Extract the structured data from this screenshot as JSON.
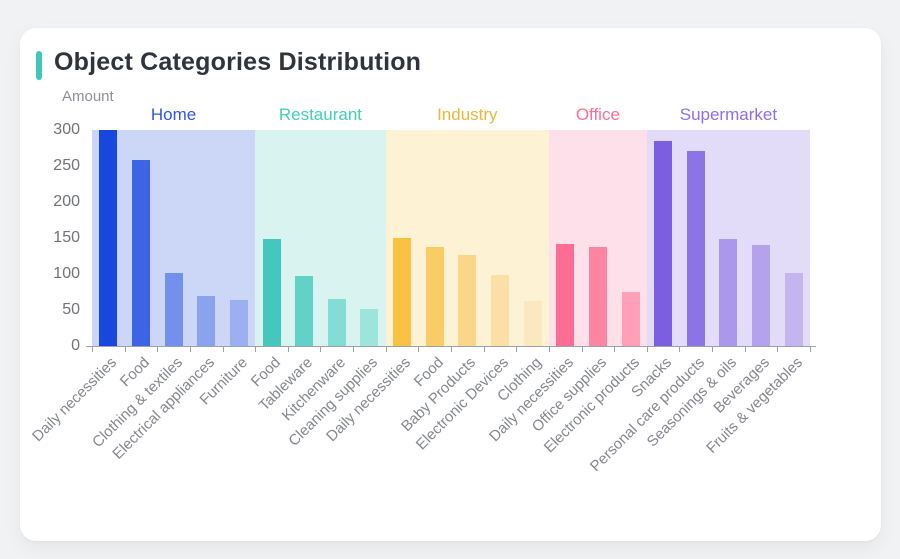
{
  "card": {
    "title": "Object Categories Distribution",
    "accent_color": "#3fc6bd"
  },
  "chart_data": {
    "type": "bar",
    "title": "Object Categories Distribution",
    "xlabel": "",
    "ylabel": "Amount",
    "ylim": [
      0,
      300
    ],
    "yticks": [
      0,
      50,
      100,
      150,
      200,
      250,
      300
    ],
    "grid": false,
    "legend_position": "none",
    "groups": [
      {
        "name": "Home",
        "label_color": "#2e55e8",
        "band_color": "#ccd7f7",
        "bars": [
          {
            "category": "Daily necessities",
            "value": 300,
            "color": "#1747dd"
          },
          {
            "category": "Food",
            "value": 258,
            "color": "#3c64e4"
          },
          {
            "category": "Clothing & textiles",
            "value": 102,
            "color": "#7290ec"
          },
          {
            "category": "Electrical appliances",
            "value": 69,
            "color": "#8aa3ef"
          },
          {
            "category": "Furniture",
            "value": 64,
            "color": "#9ab0f1"
          }
        ]
      },
      {
        "name": "Restaurant",
        "label_color": "#3fd0b7",
        "band_color": "#d8f3f0",
        "bars": [
          {
            "category": "Food",
            "value": 148,
            "color": "#45c8bc"
          },
          {
            "category": "Tableware",
            "value": 97,
            "color": "#62d2c6"
          },
          {
            "category": "Kitchenware",
            "value": 65,
            "color": "#83ddd4"
          },
          {
            "category": "Cleaning supplies",
            "value": 51,
            "color": "#9ce4dc"
          }
        ]
      },
      {
        "name": "Industry",
        "label_color": "#ecb63a",
        "band_color": "#fdf2d4",
        "bars": [
          {
            "category": "Daily necessities",
            "value": 150,
            "color": "#f8c243"
          },
          {
            "category": "Food",
            "value": 138,
            "color": "#f9cc66"
          },
          {
            "category": "Baby Products",
            "value": 126,
            "color": "#fad688"
          },
          {
            "category": "Electronic Devices",
            "value": 99,
            "color": "#fbdfa4"
          },
          {
            "category": "Clothing",
            "value": 63,
            "color": "#fce8bf"
          }
        ]
      },
      {
        "name": "Office",
        "label_color": "#f96e93",
        "band_color": "#fde0e9",
        "bars": [
          {
            "category": "Daily necessities",
            "value": 142,
            "color": "#fb6d92"
          },
          {
            "category": "Office supplies",
            "value": 138,
            "color": "#fd85a3"
          },
          {
            "category": "Electronic products",
            "value": 75,
            "color": "#ffa0b8"
          }
        ]
      },
      {
        "name": "Supermarket",
        "label_color": "#8a70e8",
        "band_color": "#e3dcf8",
        "bars": [
          {
            "category": "Snacks",
            "value": 285,
            "color": "#7c5fe0"
          },
          {
            "category": "Personal care products",
            "value": 271,
            "color": "#8d74e4"
          },
          {
            "category": "Seasonings & oils",
            "value": 148,
            "color": "#ab97eb"
          },
          {
            "category": "Beverages",
            "value": 140,
            "color": "#b4a2ed"
          },
          {
            "category": "Fruits & vegetables",
            "value": 101,
            "color": "#c4b5f1"
          }
        ]
      }
    ]
  }
}
